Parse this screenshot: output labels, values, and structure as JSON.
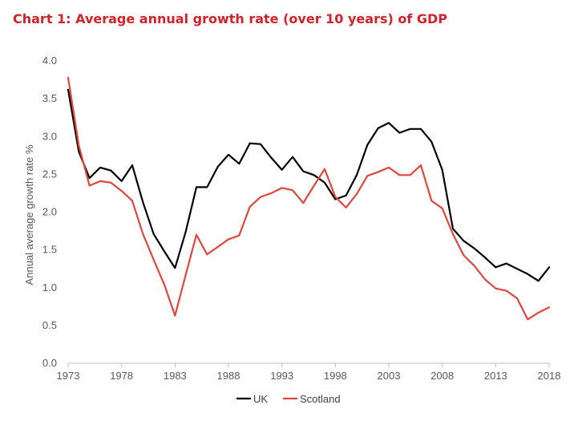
{
  "chart_data": {
    "type": "line",
    "title": "Chart 1: Average annual growth rate (over 10 years) of GDP",
    "xlabel": "",
    "ylabel": "Annual  average growth rate %",
    "xlim": [
      1973,
      2018
    ],
    "ylim": [
      0.0,
      4.0
    ],
    "x_ticks": [
      "1973",
      "1978",
      "1983",
      "1988",
      "1993",
      "1998",
      "2003",
      "2008",
      "2013",
      "2018"
    ],
    "y_ticks": [
      "0.0",
      "0.5",
      "1.0",
      "1.5",
      "2.0",
      "2.5",
      "3.0",
      "3.5",
      "4.0"
    ],
    "grid": false,
    "legend_position": "bottom",
    "x": [
      1973,
      1974,
      1975,
      1976,
      1977,
      1978,
      1979,
      1980,
      1981,
      1982,
      1983,
      1984,
      1985,
      1986,
      1987,
      1988,
      1989,
      1990,
      1991,
      1992,
      1993,
      1994,
      1995,
      1996,
      1997,
      1998,
      1999,
      2000,
      2001,
      2002,
      2003,
      2004,
      2005,
      2006,
      2007,
      2008,
      2009,
      2010,
      2011,
      2012,
      2013,
      2014,
      2015,
      2016,
      2017,
      2018
    ],
    "series": [
      {
        "name": "UK",
        "color": "#000000",
        "values": [
          3.62,
          2.8,
          2.45,
          2.59,
          2.55,
          2.41,
          2.62,
          2.13,
          1.71,
          1.48,
          1.26,
          1.74,
          2.33,
          2.33,
          2.6,
          2.76,
          2.64,
          2.91,
          2.9,
          2.72,
          2.56,
          2.73,
          2.54,
          2.49,
          2.39,
          2.17,
          2.22,
          2.49,
          2.89,
          3.11,
          3.18,
          3.05,
          3.1,
          3.1,
          2.93,
          2.56,
          1.78,
          1.62,
          1.52,
          1.4,
          1.27,
          1.32,
          1.25,
          1.18,
          1.09,
          1.27
        ]
      },
      {
        "name": "Scotland",
        "color": "#e0463c",
        "values": [
          3.78,
          2.88,
          2.35,
          2.41,
          2.39,
          2.28,
          2.15,
          1.71,
          1.37,
          1.04,
          0.63,
          1.17,
          1.7,
          1.44,
          1.54,
          1.64,
          1.69,
          2.07,
          2.2,
          2.25,
          2.32,
          2.29,
          2.12,
          2.35,
          2.57,
          2.2,
          2.06,
          2.24,
          2.48,
          2.53,
          2.59,
          2.49,
          2.49,
          2.62,
          2.15,
          2.05,
          1.71,
          1.43,
          1.29,
          1.11,
          0.99,
          0.96,
          0.86,
          0.58,
          0.67,
          0.74
        ]
      }
    ]
  },
  "legend": {
    "uk_label": "UK",
    "scotland_label": "Scotland"
  }
}
